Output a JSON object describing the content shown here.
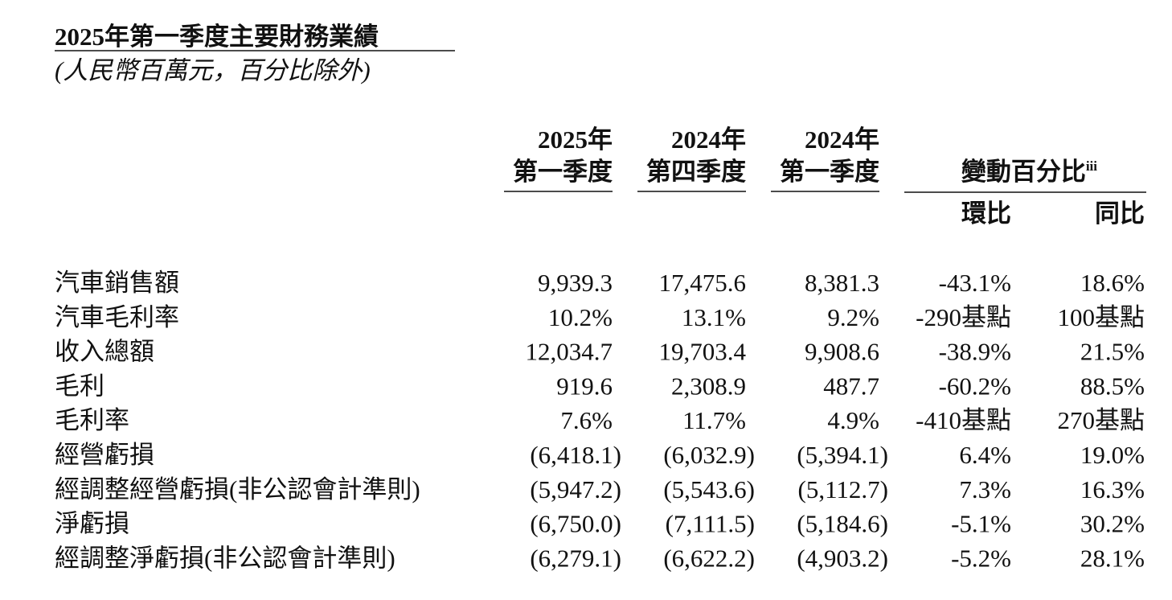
{
  "header": {
    "title": "2025年第一季度主要財務業績",
    "subtitle": "(人民幣百萬元，百分比除外)"
  },
  "table": {
    "columns": [
      {
        "line1": "2025年",
        "line2": "第一季度"
      },
      {
        "line1": "2024年",
        "line2": "第四季度"
      },
      {
        "line1": "2024年",
        "line2": "第一季度"
      }
    ],
    "change_header": "變動百分比",
    "change_note": "iii",
    "change_columns": [
      "環比",
      "同比"
    ],
    "rows": [
      {
        "label": "汽車銷售額",
        "cells": [
          "9,939.3",
          "17,475.6",
          "8,381.3",
          "-43.1%",
          "18.6%"
        ]
      },
      {
        "label": "汽車毛利率",
        "cells": [
          "10.2%",
          "13.1%",
          "9.2%",
          "-290基點",
          "100基點"
        ]
      },
      {
        "label": "收入總額",
        "cells": [
          "12,034.7",
          "19,703.4",
          "9,908.6",
          "-38.9%",
          "21.5%"
        ]
      },
      {
        "label": "毛利",
        "cells": [
          "919.6",
          "2,308.9",
          "487.7",
          "-60.2%",
          "88.5%"
        ]
      },
      {
        "label": "毛利率",
        "cells": [
          "7.6%",
          "11.7%",
          "4.9%",
          "-410基點",
          "270基點"
        ]
      },
      {
        "label": "經營虧損",
        "cells": [
          "(6,418.1)",
          "(6,032.9)",
          "(5,394.1)",
          "6.4%",
          "19.0%"
        ]
      },
      {
        "label": "經調整經營虧損(非公認會計準則)",
        "cells": [
          "(5,947.2)",
          "(5,543.6)",
          "(5,112.7)",
          "7.3%",
          "16.3%"
        ]
      },
      {
        "label": "淨虧損",
        "cells": [
          "(6,750.0)",
          "(7,111.5)",
          "(5,184.6)",
          "-5.1%",
          "30.2%"
        ]
      },
      {
        "label": "經調整淨虧損(非公認會計準則)",
        "cells": [
          "(6,279.1)",
          "(6,622.2)",
          "(4,903.2)",
          "-5.2%",
          "28.1%"
        ]
      }
    ]
  }
}
